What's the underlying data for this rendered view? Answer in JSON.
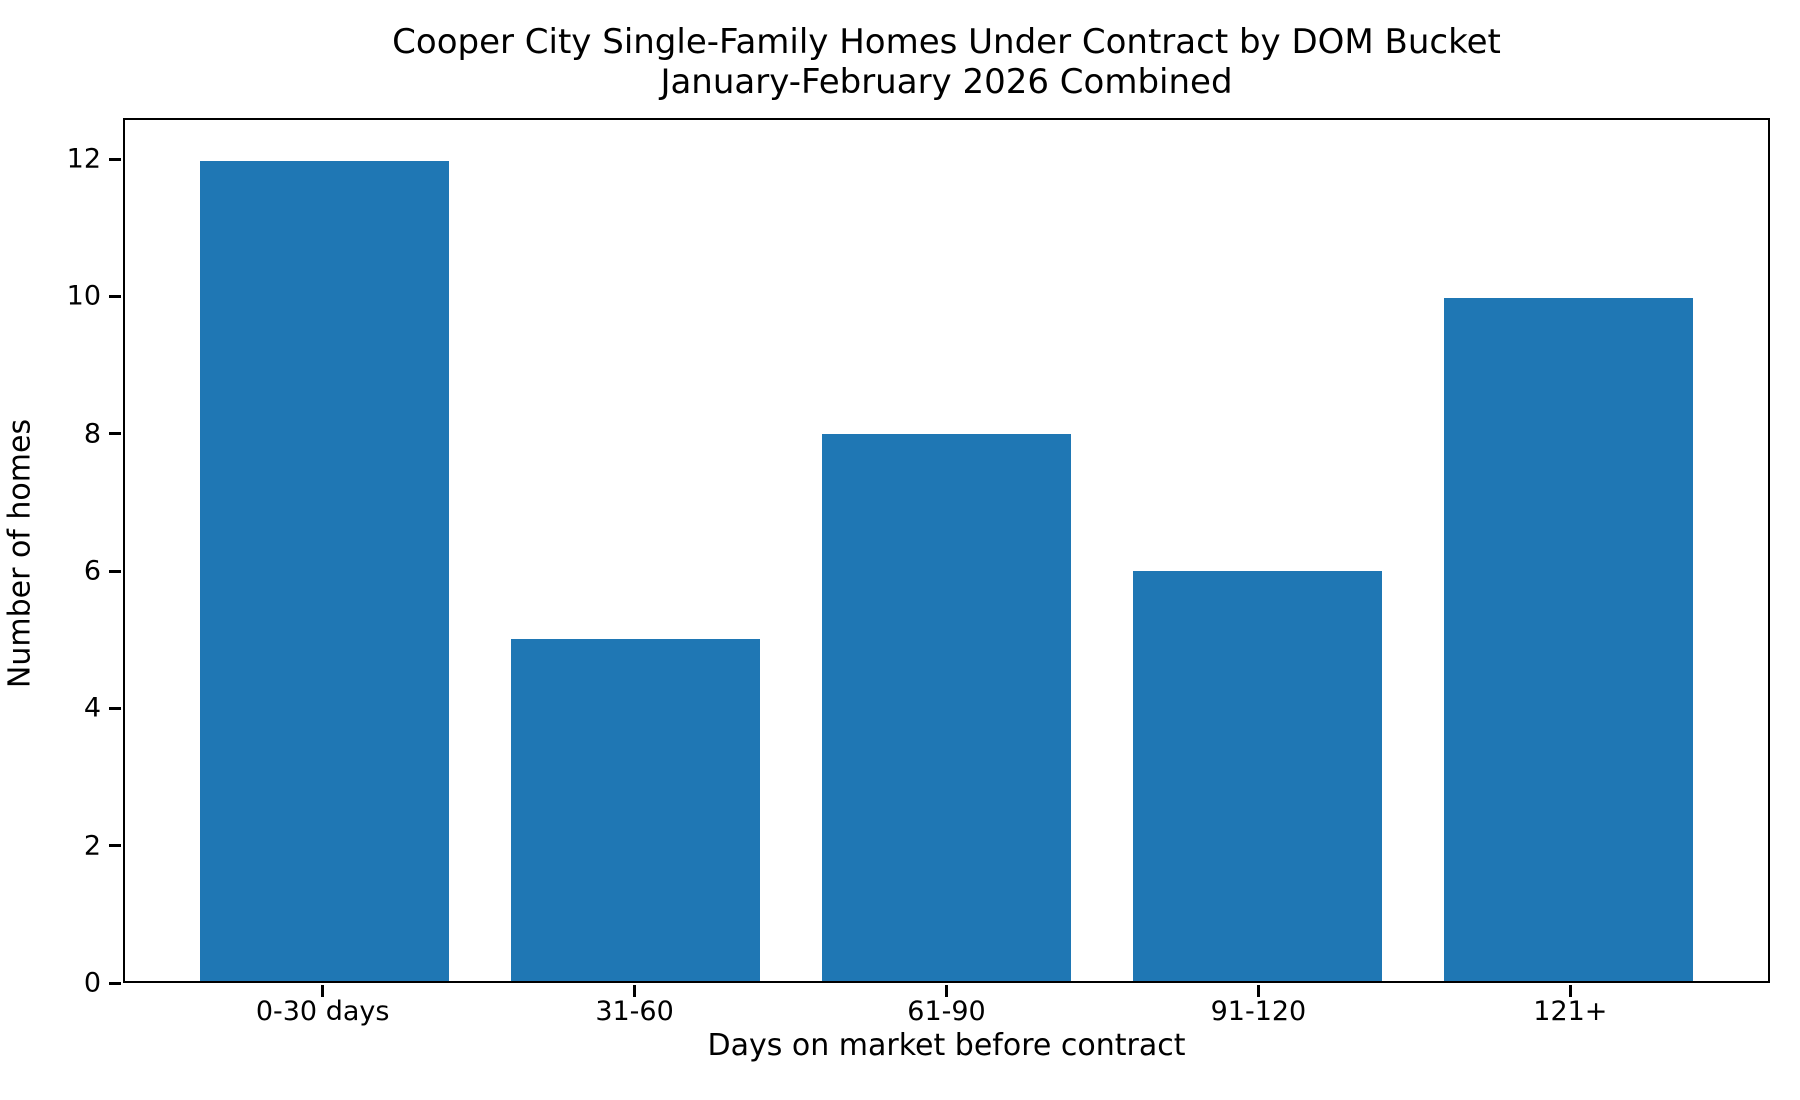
{
  "chart_data": {
    "type": "bar",
    "title": "Cooper City Single-Family Homes Under Contract by DOM Bucket",
    "subtitle": "January-February 2026 Combined",
    "categories": [
      "0-30 days",
      "31-60",
      "61-90",
      "91-120",
      "121+"
    ],
    "values": [
      12,
      5,
      8,
      6,
      10
    ],
    "xlabel": "Days on market before contract",
    "ylabel": "Number of homes",
    "yticks": [
      0,
      2,
      4,
      6,
      8,
      10,
      12
    ],
    "ylim": [
      0,
      12.6
    ],
    "bar_width_fraction": 0.8,
    "x_margin_units": 0.64,
    "bar_color": "#1f77b4",
    "grid": false,
    "legend": "none"
  }
}
